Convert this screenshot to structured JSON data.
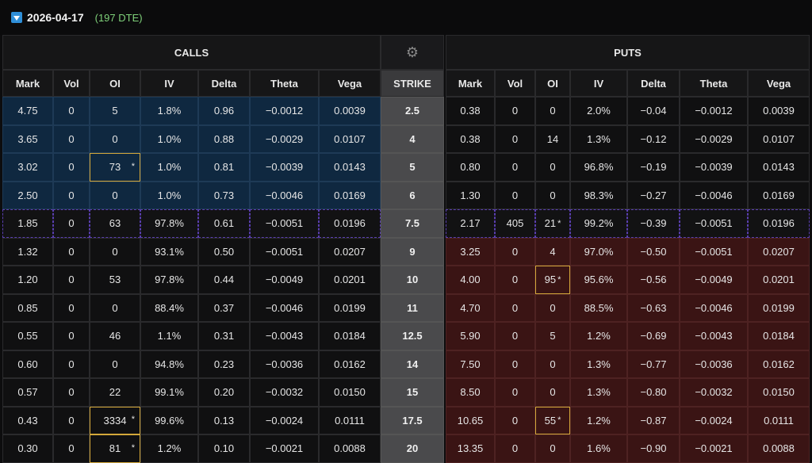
{
  "header": {
    "expiry_date": "2026-04-17",
    "dte_label": "(197 DTE)"
  },
  "sections": {
    "calls": "CALLS",
    "puts": "PUTS",
    "settings_icon": "gear-icon"
  },
  "columns": {
    "calls": [
      "Mark",
      "Vol",
      "OI",
      "IV",
      "Delta",
      "Theta",
      "Vega"
    ],
    "strike": "STRIKE",
    "puts": [
      "Mark",
      "Vol",
      "OI",
      "IV",
      "Delta",
      "Theta",
      "Vega"
    ]
  },
  "colors": {
    "itm_call_bg": "#0f2840",
    "itm_put_bg": "#3a1414",
    "atm_border": "#5a3fb0",
    "highlight_border": "#d4a83a",
    "dte_text": "#7fd17a"
  },
  "rows": [
    {
      "strike": "2.5",
      "call": [
        "4.75",
        "0",
        "5",
        "1.8%",
        "0.96",
        "-0.0012",
        "0.0039"
      ],
      "put": [
        "0.38",
        "0",
        "0",
        "2.0%",
        "-0.04",
        "-0.0012",
        "0.0039"
      ],
      "call_itm": true,
      "put_itm": false,
      "atm": false,
      "call_oi_hl": false,
      "call_oi_star": false,
      "put_oi_hl": false,
      "put_oi_star": false
    },
    {
      "strike": "4",
      "call": [
        "3.65",
        "0",
        "0",
        "1.0%",
        "0.88",
        "-0.0029",
        "0.0107"
      ],
      "put": [
        "0.38",
        "0",
        "14",
        "1.3%",
        "-0.12",
        "-0.0029",
        "0.0107"
      ],
      "call_itm": true,
      "put_itm": false,
      "atm": false,
      "call_oi_hl": false,
      "call_oi_star": false,
      "put_oi_hl": false,
      "put_oi_star": false
    },
    {
      "strike": "5",
      "call": [
        "3.02",
        "0",
        "73",
        "1.0%",
        "0.81",
        "-0.0039",
        "0.0143"
      ],
      "put": [
        "0.80",
        "0",
        "0",
        "96.8%",
        "-0.19",
        "-0.0039",
        "0.0143"
      ],
      "call_itm": true,
      "put_itm": false,
      "atm": false,
      "call_oi_hl": true,
      "call_oi_star": true,
      "put_oi_hl": false,
      "put_oi_star": false
    },
    {
      "strike": "6",
      "call": [
        "2.50",
        "0",
        "0",
        "1.0%",
        "0.73",
        "-0.0046",
        "0.0169"
      ],
      "put": [
        "1.30",
        "0",
        "0",
        "98.3%",
        "-0.27",
        "-0.0046",
        "0.0169"
      ],
      "call_itm": true,
      "put_itm": false,
      "atm": false,
      "call_oi_hl": false,
      "call_oi_star": false,
      "put_oi_hl": false,
      "put_oi_star": false
    },
    {
      "strike": "7.5",
      "call": [
        "1.85",
        "0",
        "63",
        "97.8%",
        "0.61",
        "-0.0051",
        "0.0196"
      ],
      "put": [
        "2.17",
        "405",
        "21",
        "99.2%",
        "-0.39",
        "-0.0051",
        "0.0196"
      ],
      "call_itm": false,
      "put_itm": false,
      "atm": true,
      "call_oi_hl": false,
      "call_oi_star": false,
      "put_oi_hl": false,
      "put_oi_star": true
    },
    {
      "strike": "9",
      "call": [
        "1.32",
        "0",
        "0",
        "93.1%",
        "0.50",
        "-0.0051",
        "0.0207"
      ],
      "put": [
        "3.25",
        "0",
        "4",
        "97.0%",
        "-0.50",
        "-0.0051",
        "0.0207"
      ],
      "call_itm": false,
      "put_itm": true,
      "atm": false,
      "call_oi_hl": false,
      "call_oi_star": false,
      "put_oi_hl": false,
      "put_oi_star": false
    },
    {
      "strike": "10",
      "call": [
        "1.20",
        "0",
        "53",
        "97.8%",
        "0.44",
        "-0.0049",
        "0.0201"
      ],
      "put": [
        "4.00",
        "0",
        "95",
        "95.6%",
        "-0.56",
        "-0.0049",
        "0.0201"
      ],
      "call_itm": false,
      "put_itm": true,
      "atm": false,
      "call_oi_hl": false,
      "call_oi_star": false,
      "put_oi_hl": true,
      "put_oi_star": true
    },
    {
      "strike": "11",
      "call": [
        "0.85",
        "0",
        "0",
        "88.4%",
        "0.37",
        "-0.0046",
        "0.0199"
      ],
      "put": [
        "4.70",
        "0",
        "0",
        "88.5%",
        "-0.63",
        "-0.0046",
        "0.0199"
      ],
      "call_itm": false,
      "put_itm": true,
      "atm": false,
      "call_oi_hl": false,
      "call_oi_star": false,
      "put_oi_hl": false,
      "put_oi_star": false
    },
    {
      "strike": "12.5",
      "call": [
        "0.55",
        "0",
        "46",
        "1.1%",
        "0.31",
        "-0.0043",
        "0.0184"
      ],
      "put": [
        "5.90",
        "0",
        "5",
        "1.2%",
        "-0.69",
        "-0.0043",
        "0.0184"
      ],
      "call_itm": false,
      "put_itm": true,
      "atm": false,
      "call_oi_hl": false,
      "call_oi_star": false,
      "put_oi_hl": false,
      "put_oi_star": false
    },
    {
      "strike": "14",
      "call": [
        "0.60",
        "0",
        "0",
        "94.8%",
        "0.23",
        "-0.0036",
        "0.0162"
      ],
      "put": [
        "7.50",
        "0",
        "0",
        "1.3%",
        "-0.77",
        "-0.0036",
        "0.0162"
      ],
      "call_itm": false,
      "put_itm": true,
      "atm": false,
      "call_oi_hl": false,
      "call_oi_star": false,
      "put_oi_hl": false,
      "put_oi_star": false
    },
    {
      "strike": "15",
      "call": [
        "0.57",
        "0",
        "22",
        "99.1%",
        "0.20",
        "-0.0032",
        "0.0150"
      ],
      "put": [
        "8.50",
        "0",
        "0",
        "1.3%",
        "-0.80",
        "-0.0032",
        "0.0150"
      ],
      "call_itm": false,
      "put_itm": true,
      "atm": false,
      "call_oi_hl": false,
      "call_oi_star": false,
      "put_oi_hl": false,
      "put_oi_star": false
    },
    {
      "strike": "17.5",
      "call": [
        "0.43",
        "0",
        "3334",
        "99.6%",
        "0.13",
        "-0.0024",
        "0.0111"
      ],
      "put": [
        "10.65",
        "0",
        "55",
        "1.2%",
        "-0.87",
        "-0.0024",
        "0.0111"
      ],
      "call_itm": false,
      "put_itm": true,
      "atm": false,
      "call_oi_hl": true,
      "call_oi_star": true,
      "put_oi_hl": true,
      "put_oi_star": true
    },
    {
      "strike": "20",
      "call": [
        "0.30",
        "0",
        "81",
        "1.2%",
        "0.10",
        "-0.0021",
        "0.0088"
      ],
      "put": [
        "13.35",
        "0",
        "0",
        "1.6%",
        "-0.90",
        "-0.0021",
        "0.0088"
      ],
      "call_itm": false,
      "put_itm": true,
      "atm": false,
      "call_oi_hl": true,
      "call_oi_star": true,
      "put_oi_hl": false,
      "put_oi_star": false
    }
  ]
}
